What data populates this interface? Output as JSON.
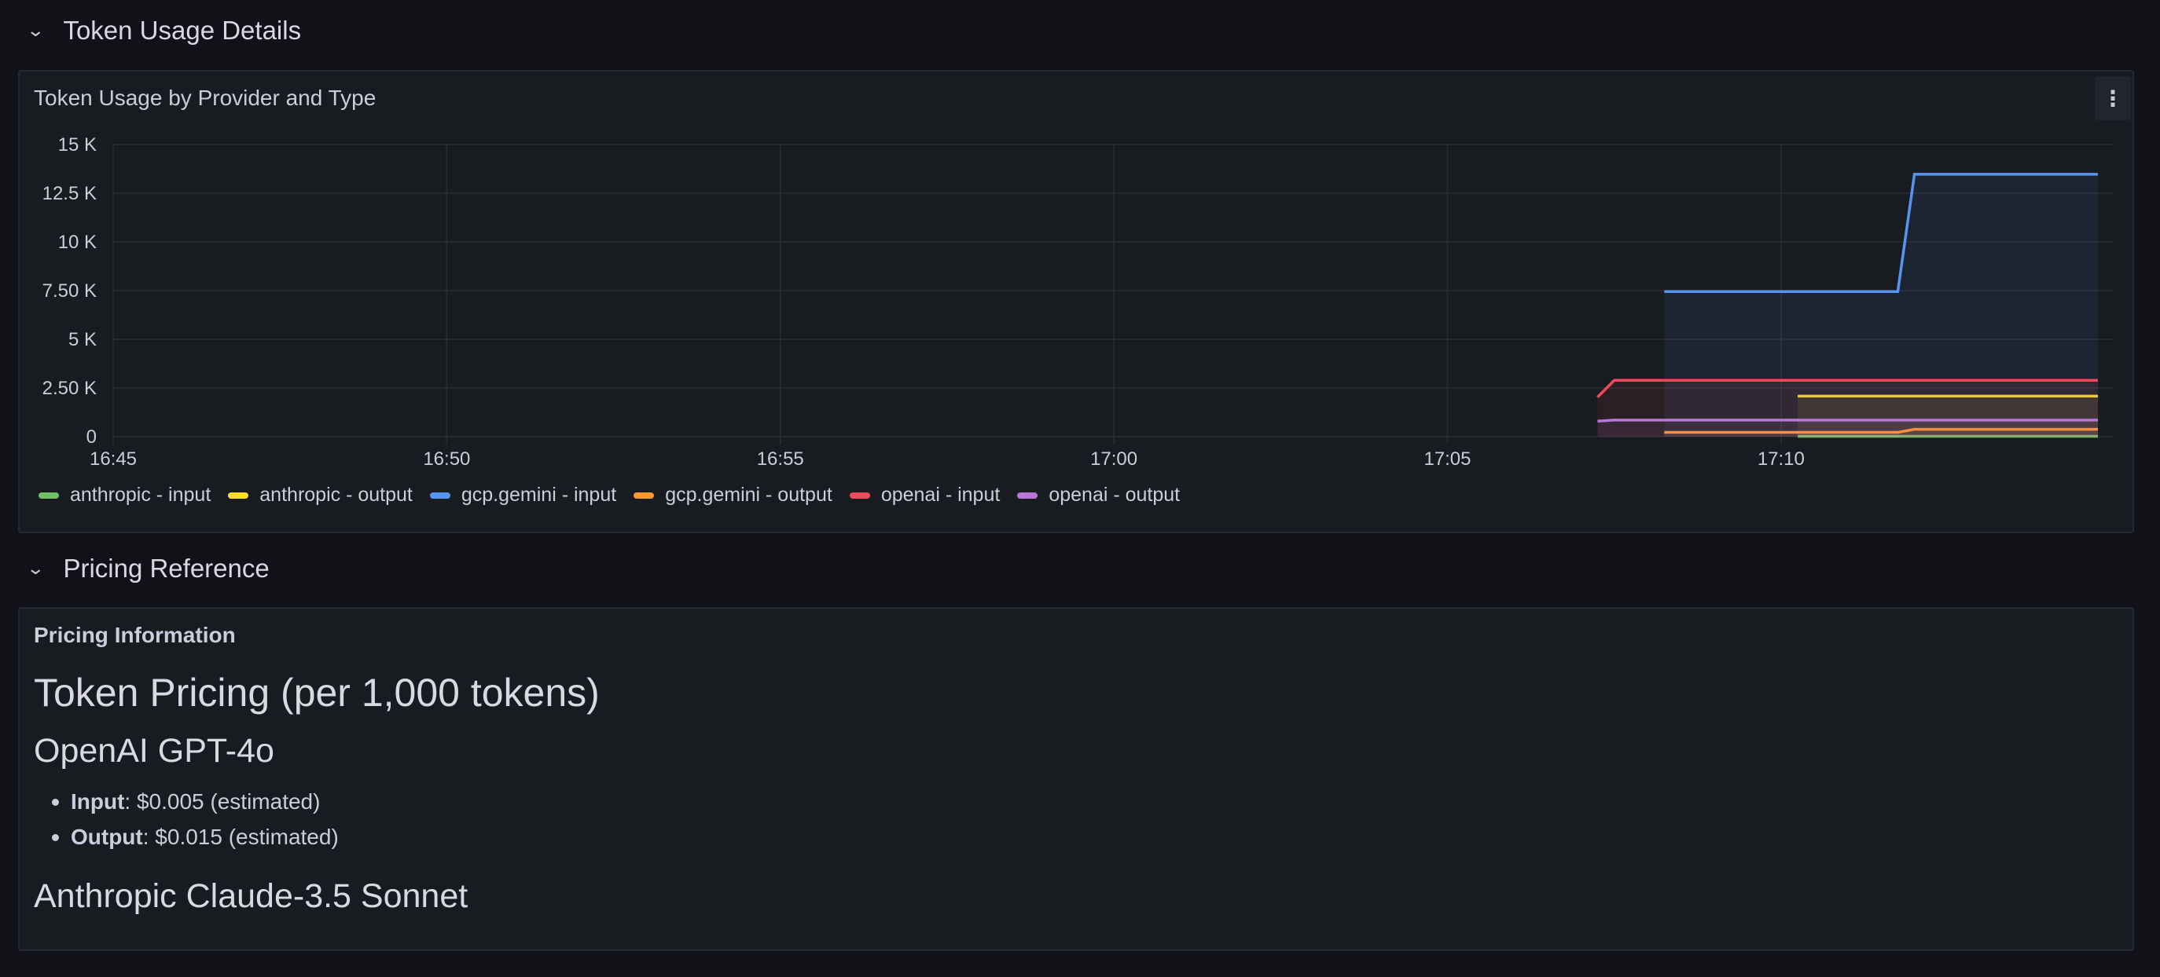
{
  "rows": [
    {
      "title": "Token Usage Details",
      "icon": "chevron-down-icon"
    },
    {
      "title": "Pricing Reference",
      "icon": "chevron-down-icon"
    }
  ],
  "usage_panel": {
    "title": "Token Usage by Provider and Type",
    "menu_icon": "kebab-menu-icon"
  },
  "chart_data": {
    "type": "line",
    "title": "Token Usage by Provider and Type",
    "xlim": [
      "16:45:00",
      "17:14:45"
    ],
    "ylim": [
      0,
      15000
    ],
    "x_ticks": [
      "16:45",
      "16:50",
      "16:55",
      "17:00",
      "17:05",
      "17:10"
    ],
    "y_ticks": [
      {
        "value": 0,
        "label": "0"
      },
      {
        "value": 2500,
        "label": "2.50 K"
      },
      {
        "value": 5000,
        "label": "5 K"
      },
      {
        "value": 7500,
        "label": "7.50 K"
      },
      {
        "value": 10000,
        "label": "10 K"
      },
      {
        "value": 12500,
        "label": "12.5 K"
      },
      {
        "value": 15000,
        "label": "15 K"
      }
    ],
    "grid": true,
    "legend_placement": "bottom-left",
    "series": [
      {
        "name": "anthropic - input",
        "color": "#73bf69",
        "points": [
          [
            "17:10:15",
            20
          ],
          [
            "17:14:45",
            20
          ]
        ]
      },
      {
        "name": "anthropic - output",
        "color": "#fade2a",
        "points": [
          [
            "17:10:15",
            2080
          ],
          [
            "17:14:45",
            2080
          ]
        ]
      },
      {
        "name": "gcp.gemini - input",
        "color": "#5794f2",
        "points": [
          [
            "17:08:15",
            7450
          ],
          [
            "17:11:45",
            7450
          ],
          [
            "17:12:00",
            13470
          ],
          [
            "17:14:45",
            13470
          ]
        ]
      },
      {
        "name": "gcp.gemini - output",
        "color": "#ff9830",
        "points": [
          [
            "17:08:15",
            220
          ],
          [
            "17:11:45",
            220
          ],
          [
            "17:12:00",
            380
          ],
          [
            "17:14:45",
            380
          ]
        ]
      },
      {
        "name": "openai - input",
        "color": "#f2495c",
        "points": [
          [
            "17:07:15",
            2030
          ],
          [
            "17:07:30",
            2890
          ],
          [
            "17:14:45",
            2890
          ]
        ]
      },
      {
        "name": "openai - output",
        "color": "#b877d9",
        "points": [
          [
            "17:07:15",
            800
          ],
          [
            "17:07:30",
            850
          ],
          [
            "17:14:45",
            850
          ]
        ]
      }
    ]
  },
  "pricing_panel": {
    "title": "Pricing Information",
    "heading": "Token Pricing (per 1,000 tokens)",
    "sections": [
      {
        "title": "OpenAI GPT-4o",
        "items": [
          {
            "label": "Input",
            "value": ": $0.005 (estimated)"
          },
          {
            "label": "Output",
            "value": ": $0.015 (estimated)"
          }
        ]
      },
      {
        "title": "Anthropic Claude-3.5 Sonnet",
        "items": []
      }
    ]
  }
}
